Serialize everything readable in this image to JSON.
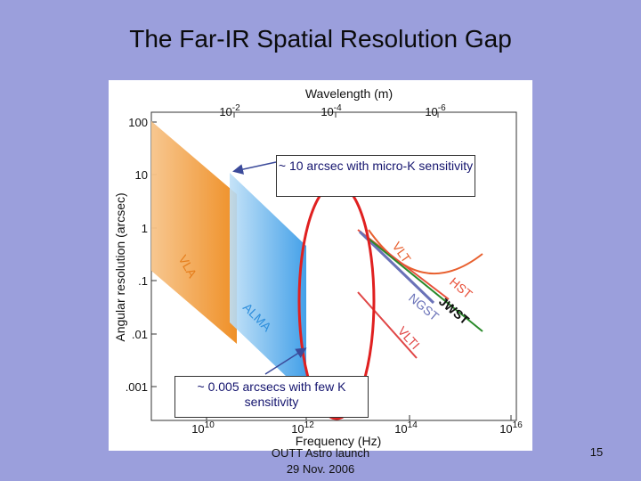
{
  "slide": {
    "title": "The Far-IR Spatial Resolution Gap",
    "footer_line1": "OUTT Astro launch",
    "footer_line2": "29 Nov. 2006",
    "page_number": "15"
  },
  "figure": {
    "top_axis_title": "Wavelength (m)",
    "top_ticks": [
      {
        "base": "10",
        "exp": "-2"
      },
      {
        "base": "10",
        "exp": "-4"
      },
      {
        "base": "10",
        "exp": "-6"
      }
    ],
    "y_axis_title": "Angular resolution (arcsec)",
    "y_ticks": [
      "100",
      "10",
      "1",
      ".1",
      ".01",
      ".001"
    ],
    "bottom_axis_title": "Frequency (Hz)",
    "bottom_ticks": [
      {
        "base": "10",
        "exp": "10"
      },
      {
        "base": "10",
        "exp": "12"
      },
      {
        "base": "10",
        "exp": "14"
      },
      {
        "base": "10",
        "exp": "16"
      }
    ],
    "labels": {
      "vla": "VLA",
      "alma": "ALMA",
      "vlt": "VLT",
      "hst": "HST",
      "ngst": "NGST",
      "jwst": "JWST",
      "vlti": "VLTI"
    },
    "colors": {
      "vla": "#f0952a",
      "alma": "#3fa3ea",
      "vlt": "#e8602f",
      "hst": "#e8503a",
      "ngst": "#6a72b8",
      "jwst": "#2a8a2a",
      "vlti": "#e04545",
      "gap_ellipse": "#e02020",
      "arrows": "#3b4a9a"
    }
  },
  "callouts": {
    "top": "~ 10 arcsec with micro-K sensitivity",
    "bottom": "~ 0.005 arcsecs with few K sensitivity"
  }
}
